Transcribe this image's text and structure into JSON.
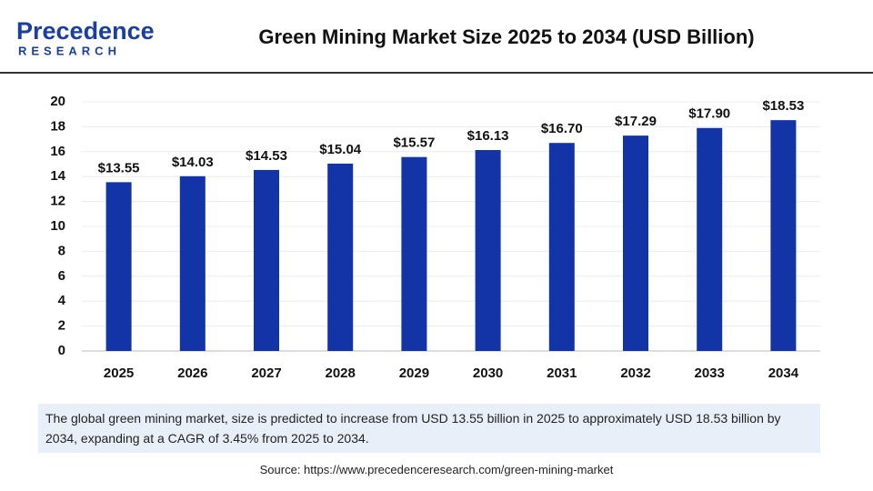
{
  "header": {
    "logo_name": "Precedence",
    "logo_tagline": "RESEARCH"
  },
  "chart_data": {
    "type": "bar",
    "title": "Green Mining Market Size 2025 to 2034 (USD Billion)",
    "categories": [
      "2025",
      "2026",
      "2027",
      "2028",
      "2029",
      "2030",
      "2031",
      "2032",
      "2033",
      "2034"
    ],
    "values": [
      13.55,
      14.03,
      14.53,
      15.04,
      15.57,
      16.13,
      16.7,
      17.29,
      17.9,
      18.53
    ],
    "value_labels": [
      "$13.55",
      "$14.03",
      "$14.53",
      "$15.04",
      "$15.57",
      "$16.13",
      "$16.70",
      "$17.29",
      "$17.90",
      "$18.53"
    ],
    "color": "#1234a6",
    "ylim": [
      0,
      20
    ],
    "yticks": [
      0,
      2,
      4,
      6,
      8,
      10,
      12,
      14,
      16,
      18,
      20
    ],
    "grid": true
  },
  "note": "The global green mining market, size is predicted to increase from USD 13.55 billion in 2025 to approximately USD 18.53 billion by 2034, expanding at a CAGR of 3.45% from 2025 to 2034.",
  "source": "Source: https://www.precedenceresearch.com/green-mining-market"
}
